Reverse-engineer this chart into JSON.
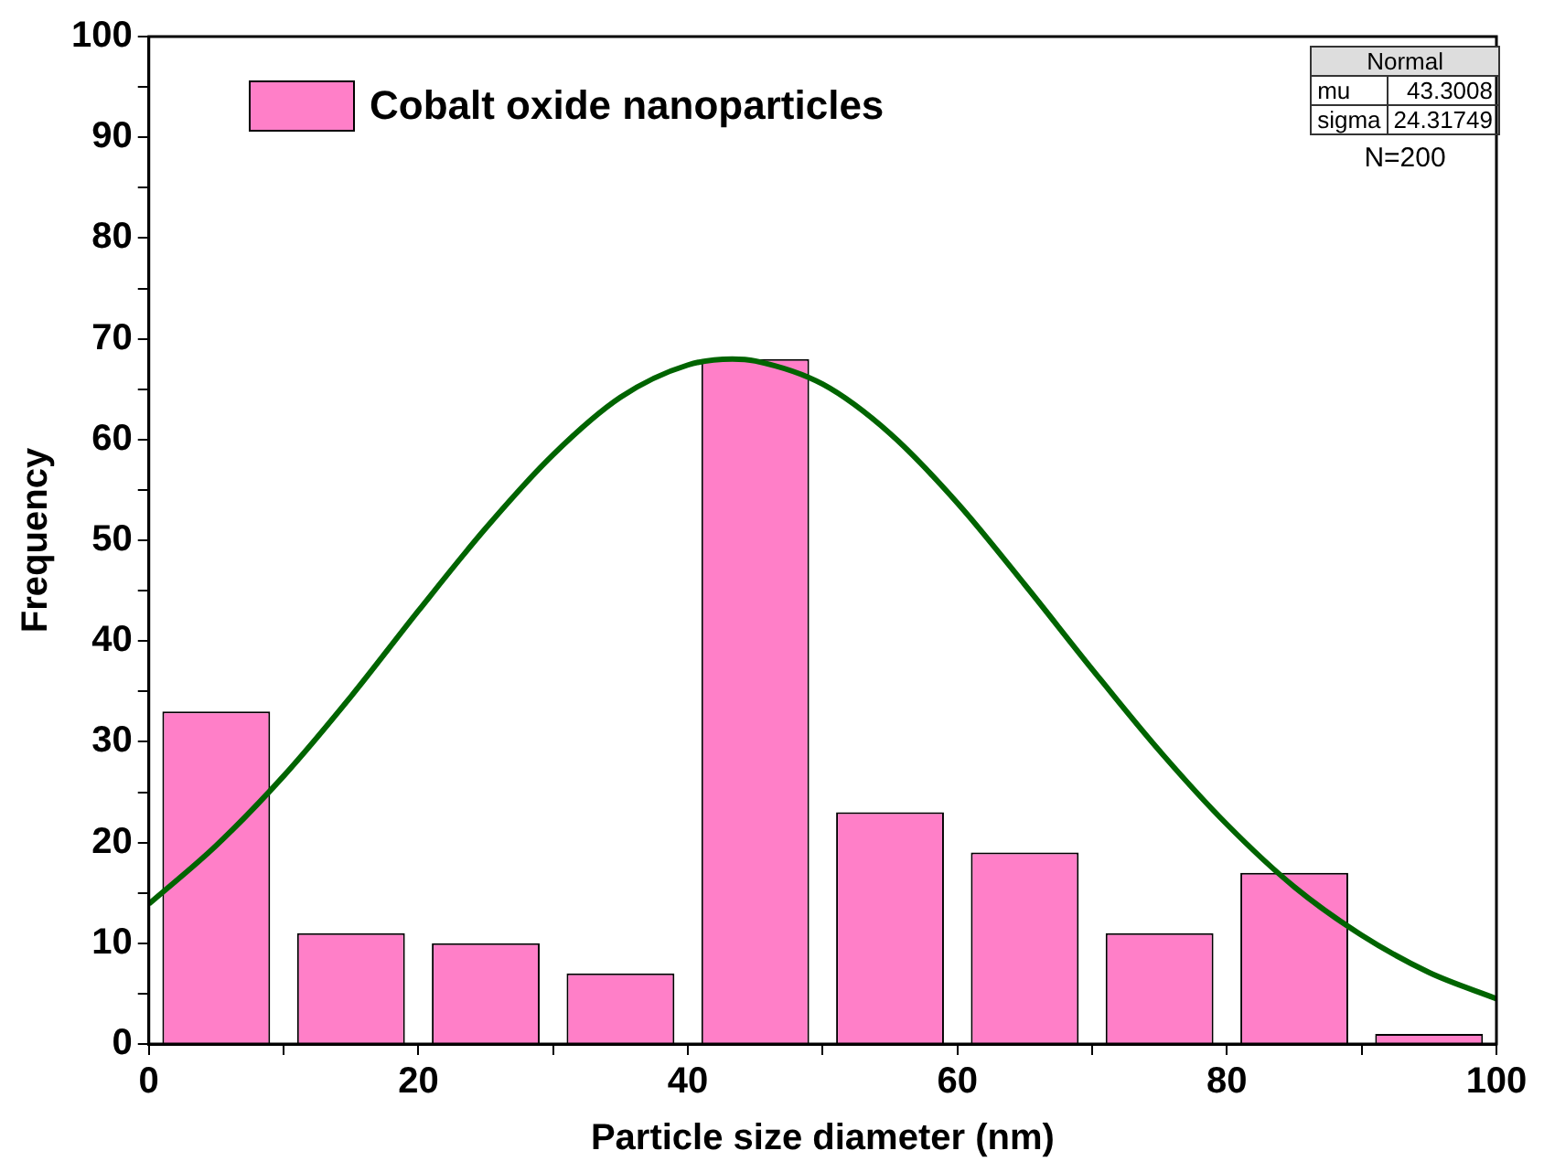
{
  "chart_data": {
    "type": "histogram",
    "xlabel": "Particle size diameter (nm)",
    "ylabel": "Frequency",
    "bins": [
      0,
      10,
      20,
      30,
      40,
      50,
      60,
      70,
      80,
      90,
      100
    ],
    "series": [
      {
        "name": "Cobalt oxide nanoparticles",
        "color": "#ff7fc8",
        "values": [
          33,
          11,
          10,
          7,
          68,
          23,
          19,
          11,
          17,
          1
        ]
      },
      {
        "type": "line",
        "color": "#006400",
        "x": [
          0,
          5,
          10,
          15,
          20,
          25,
          30,
          35,
          40,
          43.3,
          45,
          50,
          55,
          60,
          65,
          70,
          75,
          80,
          85,
          90,
          95,
          100
        ],
        "values": [
          13.9,
          19.7,
          26.6,
          34.5,
          43,
          51.2,
          58.5,
          64.2,
          67.4,
          68,
          67.8,
          65.5,
          60.6,
          53.7,
          45.6,
          37.2,
          29.1,
          21.8,
          15.6,
          10.8,
          7.1,
          4.5
        ]
      }
    ],
    "xlim": [
      0,
      100
    ],
    "ylim": [
      0,
      100
    ],
    "xticks": [
      0,
      {
        "value": 10,
        "label": null
      },
      20,
      {
        "value": 30,
        "label": null
      },
      40,
      {
        "value": 50,
        "label": null
      },
      60,
      {
        "value": 70,
        "label": null
      },
      80,
      {
        "value": 90,
        "label": null
      },
      100
    ],
    "yticks": [
      0,
      {
        "value": 5,
        "label": null
      },
      10,
      {
        "value": 15,
        "label": null
      },
      20,
      {
        "value": 25,
        "label": null
      },
      30,
      {
        "value": 35,
        "label": null
      },
      40,
      {
        "value": 45,
        "label": null
      },
      50,
      {
        "value": 55,
        "label": null
      },
      60,
      {
        "value": 65,
        "label": null
      },
      70,
      {
        "value": 75,
        "label": null
      },
      80,
      {
        "value": 85,
        "label": null
      },
      90,
      {
        "value": 95,
        "label": null
      },
      100
    ],
    "grid": false,
    "legend": "top left",
    "marker": "none",
    "line_style": "solid",
    "annotations": [
      "Normal",
      "mu",
      "43.3008",
      "sigma",
      "24.31749",
      "N=200"
    ]
  }
}
